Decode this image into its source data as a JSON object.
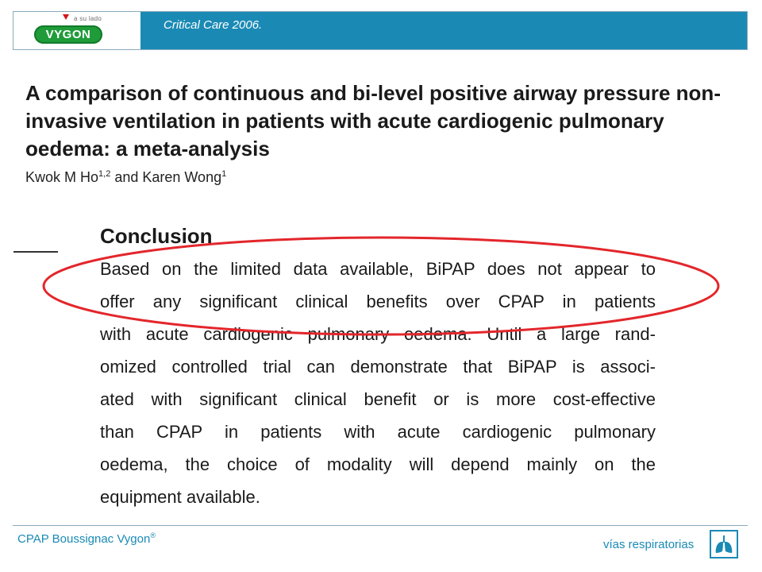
{
  "header": {
    "logo_tagline": "a su lado",
    "logo_text": "VYGON",
    "title": "Critical Care 2006."
  },
  "paper": {
    "title": "A comparison of continuous and bi-level positive airway pressure non-invasive ventilation in patients with acute cardiogenic pulmonary oedema: a meta-analysis",
    "author1": "Kwok M Ho",
    "author1_sup": "1,2",
    "author_join": " and Karen Wong",
    "author2_sup": "1"
  },
  "conclusion": {
    "heading": "Conclusion",
    "lines": [
      "Based on the limited data available, BiPAP does not appear to",
      "offer any significant clinical benefits over CPAP in patients",
      "with acute cardiogenic pulmonary oedema. Until a large rand-",
      "omized controlled trial can demonstrate that BiPAP is associ-",
      "ated with significant clinical benefit or is more cost-effective",
      "than CPAP in patients with acute cardiogenic pulmonary",
      "oedema, the choice of modality will depend mainly on the",
      "equipment available."
    ]
  },
  "footer": {
    "product": "CPAP Boussignac Vygon",
    "product_mark": "®",
    "section": "vías respiratorias",
    "icon": "lungs-icon"
  },
  "colors": {
    "brand_blue": "#1a8ab5",
    "brand_green": "#1f9b3a",
    "highlight_red": "#e3262b"
  }
}
